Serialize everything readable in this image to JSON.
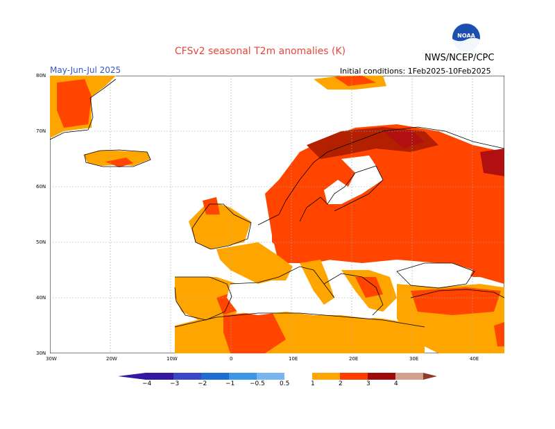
{
  "title": "CFSv2 seasonal T2m anomalies (K)",
  "period": "May-Jun-Jul 2025",
  "initial_conditions": "Initial conditions: 1Feb2025-10Feb2025",
  "agency": "NWS/NCEP/CPC",
  "logo_text": "NOAA",
  "colors": {
    "title": "#e8463a",
    "period": "#3355cc",
    "pos_05_1": "#ffa500",
    "pos_1_2": "#ff4500",
    "pos_2_3": "#b22000",
    "pos_3_4": "#b01010",
    "coast": "#000000",
    "grid": "#aaaaaa"
  },
  "lat_labels": [
    "80N",
    "70N",
    "60N",
    "50N",
    "40N",
    "30N"
  ],
  "lon_labels": [
    "30W",
    "20W",
    "10W",
    "0",
    "10E",
    "20E",
    "30E",
    "40E"
  ],
  "colorbar": {
    "labels": [
      "−4",
      "−3",
      "−2",
      "−1",
      "−0.5",
      "0.5",
      "1",
      "2",
      "3",
      "4"
    ],
    "colors": [
      "#3418a0",
      "#3c46c8",
      "#1e6ed2",
      "#3c96e6",
      "#78b4f0",
      "#ffffff",
      "#ffa500",
      "#ff3c00",
      "#a00a0a",
      "#d2a08c",
      "#8c3c28"
    ]
  }
}
